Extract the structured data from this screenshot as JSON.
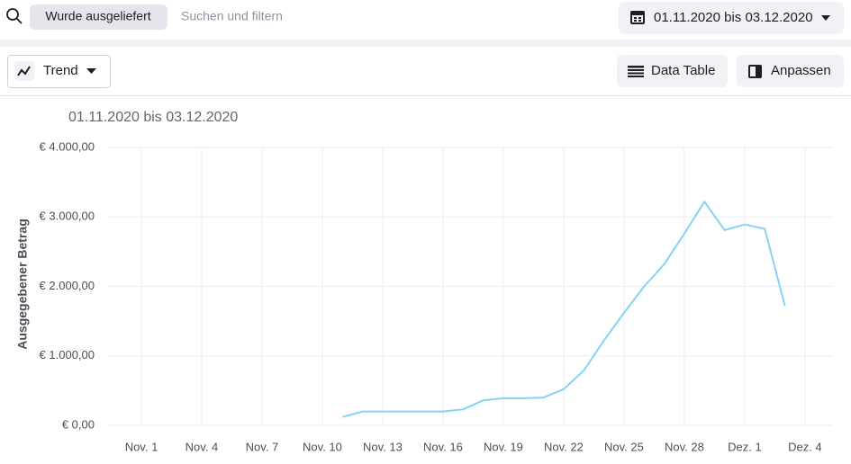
{
  "toolbar": {
    "filter_chip": "Wurde ausgeliefert",
    "search_placeholder": "Suchen und filtern",
    "date_range": "01.11.2020 bis 03.12.2020"
  },
  "view_bar": {
    "view_select": "Trend",
    "data_table_button": "Data Table",
    "customize_button": "Anpassen"
  },
  "chart_data": {
    "type": "line",
    "subtitle": "01.11.2020 bis 03.12.2020",
    "y_label": "Ausgegebener Betrag",
    "categories": [
      "Nov. 1",
      null,
      null,
      "Nov. 4",
      null,
      null,
      "Nov. 7",
      null,
      null,
      "Nov. 10",
      null,
      null,
      "Nov. 13",
      null,
      null,
      "Nov. 16",
      null,
      null,
      "Nov. 19",
      null,
      null,
      "Nov. 22",
      null,
      null,
      "Nov. 25",
      null,
      null,
      "Nov. 28",
      null,
      null,
      "Dez. 1",
      null,
      null,
      "Dez. 4"
    ],
    "values": [
      null,
      null,
      null,
      null,
      null,
      null,
      null,
      null,
      null,
      null,
      120,
      200,
      200,
      200,
      200,
      200,
      230,
      360,
      390,
      390,
      400,
      520,
      790,
      1220,
      1620,
      2000,
      2320,
      2760,
      3220,
      2810,
      2890,
      2830,
      1720,
      null
    ],
    "color": "#86d3f2",
    "ylim": [
      0,
      4000
    ],
    "yticks": [
      {
        "value": 0,
        "label": "€ 0,00"
      },
      {
        "value": 1000,
        "label": "€ 1.000,00"
      },
      {
        "value": 2000,
        "label": "€ 2.000,00"
      },
      {
        "value": 3000,
        "label": "€ 3.000,00"
      },
      {
        "value": 4000,
        "label": "€ 4.000,00"
      }
    ],
    "grid": true
  }
}
